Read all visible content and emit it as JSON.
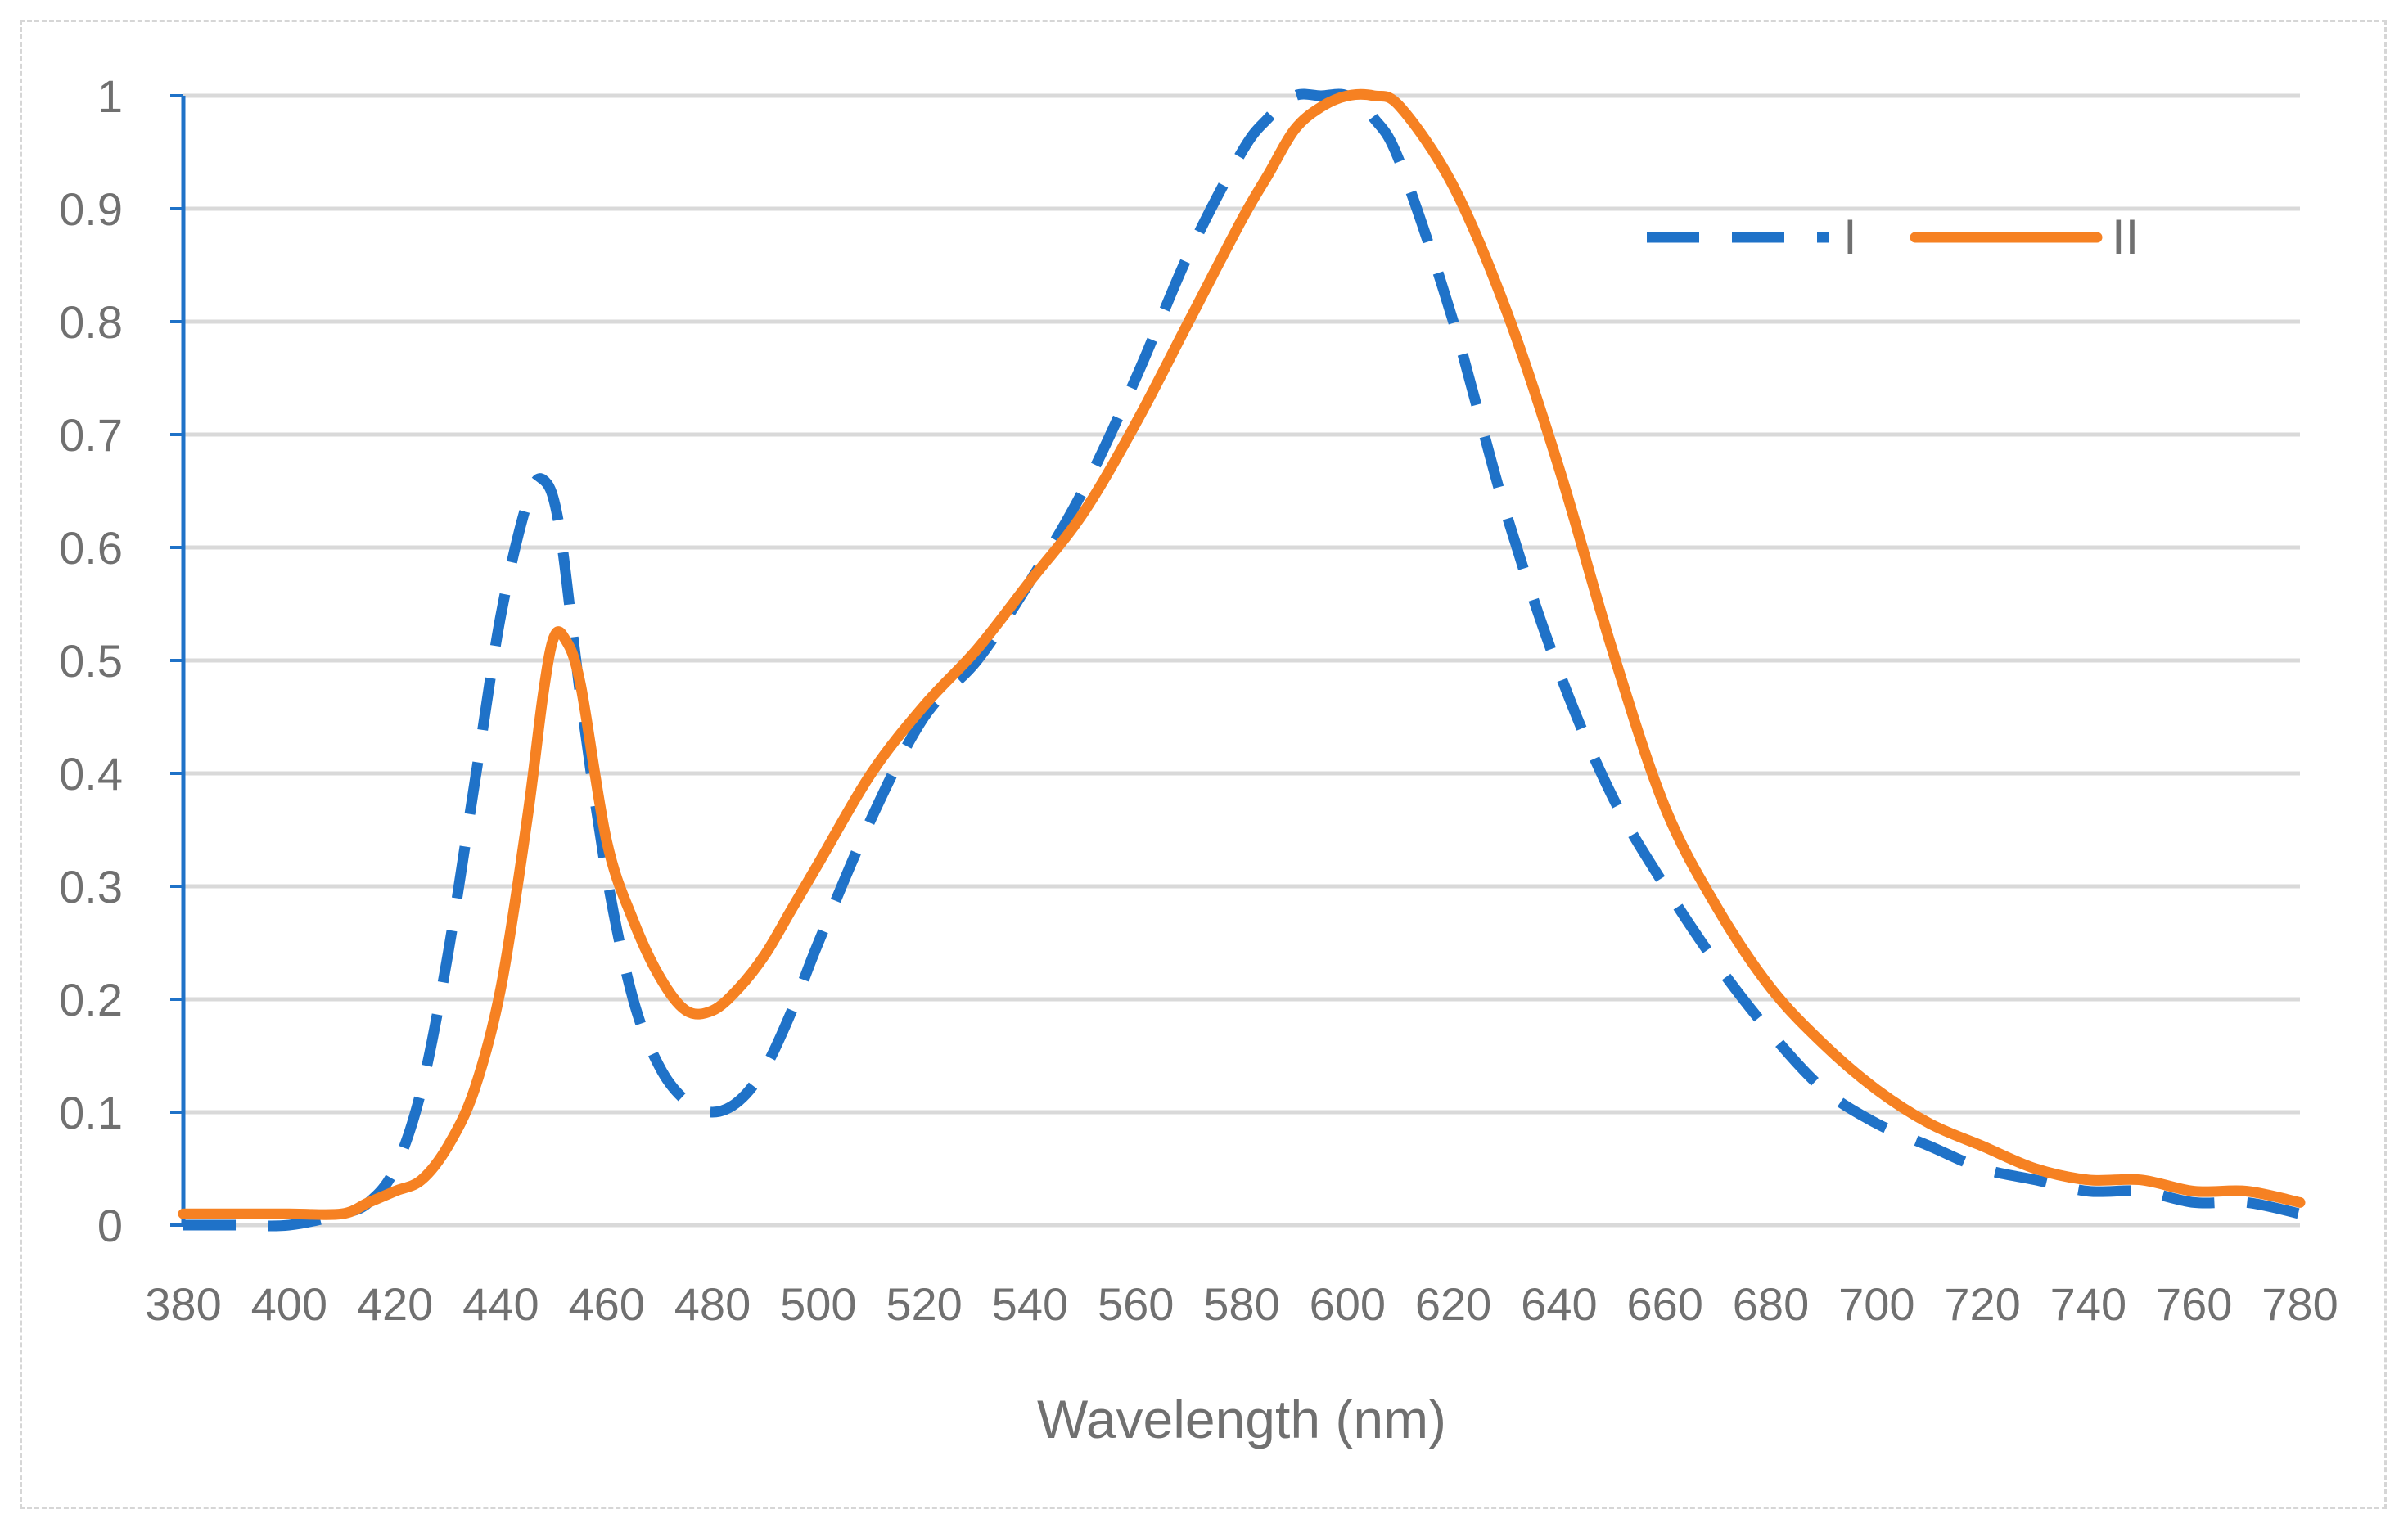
{
  "chart_data": {
    "type": "line",
    "title": "",
    "xlabel": "Wavelength (nm)",
    "ylabel": "",
    "xlim": [
      380,
      780
    ],
    "ylim": [
      0,
      1
    ],
    "x_ticks": [
      380,
      400,
      420,
      440,
      460,
      480,
      500,
      520,
      540,
      560,
      580,
      600,
      620,
      640,
      660,
      680,
      700,
      720,
      740,
      760,
      780
    ],
    "y_ticks": [
      0,
      0.1,
      0.2,
      0.3,
      0.4,
      0.5,
      0.6,
      0.7,
      0.8,
      0.9,
      1
    ],
    "y_tick_labels": [
      "0",
      "0.1",
      "0.2",
      "0.3",
      "0.4",
      "0.5",
      "0.6",
      "0.7",
      "0.8",
      "0.9",
      "1"
    ],
    "grid": true,
    "legend_position": "top-right",
    "series": [
      {
        "name": "I",
        "color": "#1f72c8",
        "style": "dashed",
        "x": [
          380,
          390,
          400,
          410,
          415,
          420,
          425,
          430,
          435,
          440,
          445,
          448,
          451,
          455,
          460,
          465,
          470,
          475,
          480,
          485,
          490,
          495,
          500,
          510,
          520,
          530,
          540,
          550,
          560,
          570,
          580,
          585,
          590,
          595,
          600,
          605,
          610,
          620,
          630,
          640,
          650,
          660,
          670,
          680,
          690,
          700,
          710,
          720,
          730,
          740,
          750,
          760,
          770,
          780
        ],
        "values": [
          0.0,
          0.0,
          0.0,
          0.01,
          0.02,
          0.05,
          0.12,
          0.24,
          0.39,
          0.54,
          0.64,
          0.66,
          0.62,
          0.47,
          0.31,
          0.2,
          0.14,
          0.11,
          0.1,
          0.11,
          0.14,
          0.19,
          0.25,
          0.36,
          0.45,
          0.5,
          0.57,
          0.65,
          0.75,
          0.86,
          0.95,
          0.98,
          1.0,
          1.0,
          1.0,
          0.98,
          0.94,
          0.8,
          0.63,
          0.49,
          0.38,
          0.3,
          0.23,
          0.17,
          0.12,
          0.09,
          0.07,
          0.05,
          0.04,
          0.03,
          0.03,
          0.02,
          0.02,
          0.01
        ]
      },
      {
        "name": "II",
        "color": "#f68122",
        "style": "solid",
        "x": [
          380,
          390,
          400,
          410,
          415,
          420,
          425,
          430,
          435,
          440,
          445,
          448,
          450,
          452,
          455,
          460,
          465,
          470,
          475,
          480,
          485,
          490,
          495,
          500,
          510,
          520,
          530,
          540,
          550,
          560,
          570,
          580,
          585,
          590,
          595,
          600,
          605,
          610,
          620,
          630,
          640,
          650,
          660,
          670,
          680,
          690,
          700,
          710,
          720,
          730,
          740,
          750,
          760,
          770,
          780
        ],
        "values": [
          0.01,
          0.01,
          0.01,
          0.01,
          0.02,
          0.03,
          0.04,
          0.07,
          0.12,
          0.21,
          0.36,
          0.47,
          0.52,
          0.52,
          0.48,
          0.34,
          0.27,
          0.22,
          0.19,
          0.19,
          0.21,
          0.24,
          0.28,
          0.32,
          0.4,
          0.46,
          0.51,
          0.57,
          0.63,
          0.71,
          0.8,
          0.89,
          0.93,
          0.97,
          0.99,
          1.0,
          1.0,
          0.99,
          0.92,
          0.81,
          0.67,
          0.51,
          0.37,
          0.28,
          0.21,
          0.16,
          0.12,
          0.09,
          0.07,
          0.05,
          0.04,
          0.04,
          0.03,
          0.03,
          0.02
        ]
      }
    ]
  }
}
